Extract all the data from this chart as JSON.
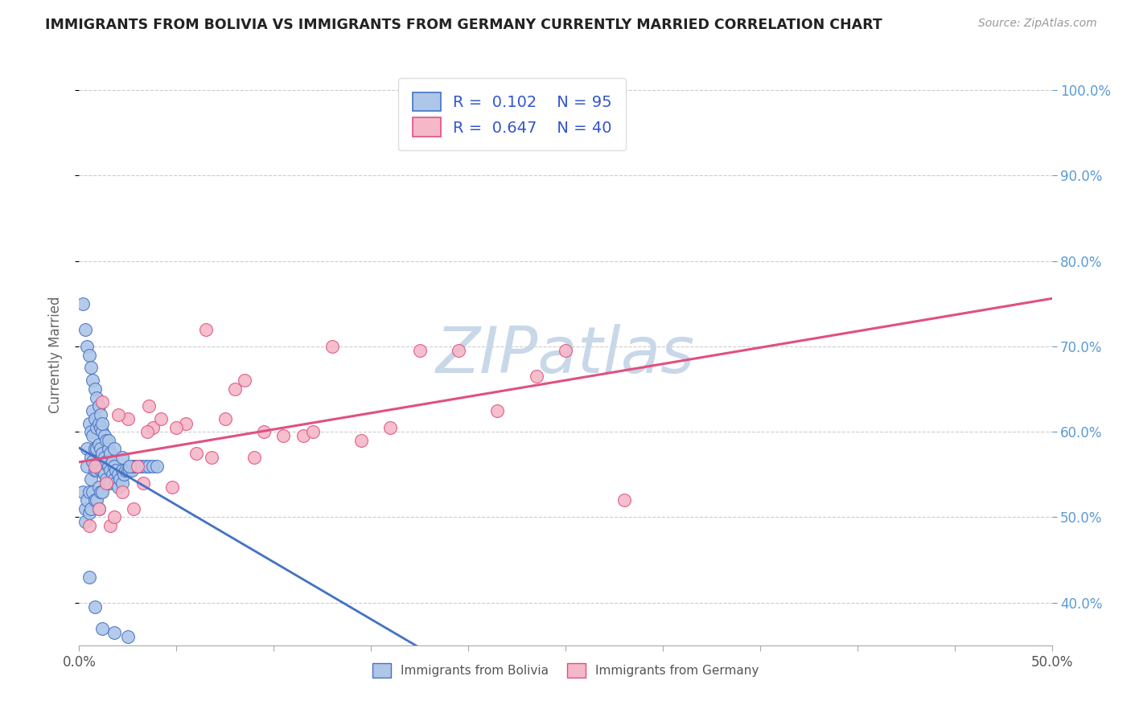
{
  "title": "IMMIGRANTS FROM BOLIVIA VS IMMIGRANTS FROM GERMANY CURRENTLY MARRIED CORRELATION CHART",
  "source_text": "Source: ZipAtlas.com",
  "ylabel": "Currently Married",
  "xlim": [
    0.0,
    0.5
  ],
  "ylim": [
    0.35,
    1.03
  ],
  "x_ticks": [
    0.0,
    0.05,
    0.1,
    0.15,
    0.2,
    0.25,
    0.3,
    0.35,
    0.4,
    0.45,
    0.5
  ],
  "x_tick_labels": [
    "0.0%",
    "",
    "",
    "",
    "",
    "",
    "",
    "",
    "",
    "",
    "50.0%"
  ],
  "y_ticks": [
    0.4,
    0.5,
    0.6,
    0.7,
    0.8,
    0.9,
    1.0
  ],
  "y_tick_labels": [
    "40.0%",
    "50.0%",
    "60.0%",
    "70.0%",
    "80.0%",
    "90.0%",
    "100.0%"
  ],
  "bolivia_color": "#aec6e8",
  "germany_color": "#f4b8c8",
  "bolivia_line_color": "#4472c4",
  "germany_line_color": "#e05080",
  "bolivia_reg_color": "#9ab8d8",
  "legend_r_bolivia": "R =  0.102",
  "legend_n_bolivia": "N = 95",
  "legend_r_germany": "R =  0.647",
  "legend_n_germany": "N = 40",
  "watermark": "ZIPatlas",
  "watermark_color": "#c8d8e8",
  "bolivia_scatter_x": [
    0.002,
    0.003,
    0.003,
    0.004,
    0.004,
    0.004,
    0.005,
    0.005,
    0.005,
    0.006,
    0.006,
    0.006,
    0.006,
    0.007,
    0.007,
    0.007,
    0.007,
    0.008,
    0.008,
    0.008,
    0.008,
    0.009,
    0.009,
    0.009,
    0.009,
    0.01,
    0.01,
    0.01,
    0.01,
    0.01,
    0.011,
    0.011,
    0.011,
    0.011,
    0.012,
    0.012,
    0.012,
    0.012,
    0.013,
    0.013,
    0.013,
    0.014,
    0.014,
    0.014,
    0.015,
    0.015,
    0.015,
    0.016,
    0.016,
    0.016,
    0.017,
    0.017,
    0.018,
    0.018,
    0.019,
    0.019,
    0.02,
    0.02,
    0.021,
    0.022,
    0.022,
    0.023,
    0.024,
    0.025,
    0.026,
    0.027,
    0.028,
    0.029,
    0.03,
    0.031,
    0.032,
    0.034,
    0.036,
    0.038,
    0.04,
    0.002,
    0.003,
    0.004,
    0.005,
    0.006,
    0.007,
    0.008,
    0.009,
    0.01,
    0.011,
    0.012,
    0.015,
    0.018,
    0.022,
    0.026,
    0.005,
    0.008,
    0.012,
    0.018,
    0.025
  ],
  "bolivia_scatter_y": [
    0.53,
    0.51,
    0.495,
    0.58,
    0.56,
    0.52,
    0.61,
    0.53,
    0.505,
    0.6,
    0.57,
    0.545,
    0.51,
    0.625,
    0.595,
    0.565,
    0.53,
    0.615,
    0.58,
    0.555,
    0.52,
    0.605,
    0.58,
    0.555,
    0.52,
    0.61,
    0.585,
    0.56,
    0.535,
    0.51,
    0.605,
    0.58,
    0.555,
    0.53,
    0.6,
    0.575,
    0.555,
    0.53,
    0.595,
    0.57,
    0.55,
    0.59,
    0.565,
    0.545,
    0.58,
    0.56,
    0.54,
    0.575,
    0.555,
    0.54,
    0.565,
    0.55,
    0.56,
    0.545,
    0.555,
    0.54,
    0.55,
    0.535,
    0.545,
    0.555,
    0.54,
    0.55,
    0.555,
    0.555,
    0.555,
    0.555,
    0.56,
    0.56,
    0.56,
    0.56,
    0.56,
    0.56,
    0.56,
    0.56,
    0.56,
    0.75,
    0.72,
    0.7,
    0.69,
    0.675,
    0.66,
    0.65,
    0.64,
    0.63,
    0.62,
    0.61,
    0.59,
    0.58,
    0.57,
    0.56,
    0.43,
    0.395,
    0.37,
    0.365,
    0.36
  ],
  "germany_scatter_x": [
    0.005,
    0.008,
    0.01,
    0.014,
    0.016,
    0.018,
    0.022,
    0.025,
    0.028,
    0.03,
    0.033,
    0.036,
    0.038,
    0.042,
    0.048,
    0.055,
    0.06,
    0.068,
    0.075,
    0.08,
    0.09,
    0.095,
    0.105,
    0.115,
    0.13,
    0.145,
    0.16,
    0.175,
    0.195,
    0.215,
    0.235,
    0.25,
    0.012,
    0.02,
    0.035,
    0.05,
    0.065,
    0.085,
    0.12,
    0.28
  ],
  "germany_scatter_y": [
    0.49,
    0.56,
    0.51,
    0.54,
    0.49,
    0.5,
    0.53,
    0.615,
    0.51,
    0.56,
    0.54,
    0.63,
    0.605,
    0.615,
    0.535,
    0.61,
    0.575,
    0.57,
    0.615,
    0.65,
    0.57,
    0.6,
    0.595,
    0.595,
    0.7,
    0.59,
    0.605,
    0.695,
    0.695,
    0.625,
    0.665,
    0.695,
    0.635,
    0.62,
    0.6,
    0.605,
    0.72,
    0.66,
    0.6,
    0.52
  ]
}
